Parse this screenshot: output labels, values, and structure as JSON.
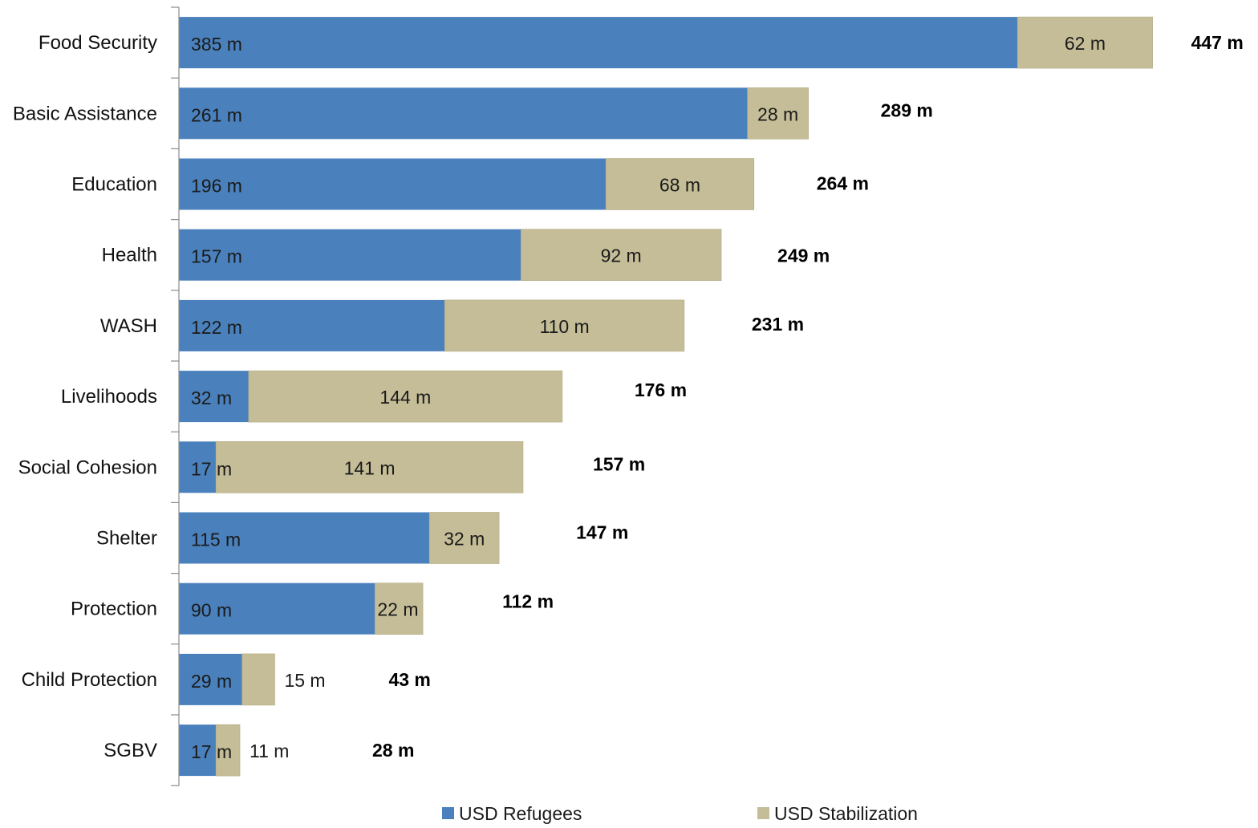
{
  "chart_data": {
    "type": "bar",
    "orientation": "horizontal",
    "stacked": true,
    "categories": [
      "Food Security",
      "Basic Assistance",
      "Education",
      "Health",
      "WASH",
      "Livelihoods",
      "Social Cohesion",
      "Shelter",
      "Protection",
      "Child Protection",
      "SGBV"
    ],
    "series": [
      {
        "name": "USD Refugees",
        "color": "#4a81bd",
        "values": [
          385,
          261,
          196,
          157,
          122,
          32,
          17,
          115,
          90,
          29,
          17
        ],
        "labels": [
          "385 m",
          "261 m",
          "196 m",
          "157 m",
          "122 m",
          "32 m",
          "17 m",
          "115 m",
          "90 m",
          "29 m",
          "17 m"
        ]
      },
      {
        "name": "USD Stabilization",
        "color": "#c4bd97",
        "values": [
          62,
          28,
          68,
          92,
          110,
          144,
          141,
          32,
          22,
          15,
          11
        ],
        "labels": [
          "62 m",
          "28 m",
          "68 m",
          "92 m",
          "110 m",
          "144 m",
          "141 m",
          "32 m",
          "22 m",
          "15 m",
          "11 m"
        ]
      }
    ],
    "totals": [
      447,
      289,
      264,
      249,
      231,
      176,
      157,
      147,
      112,
      43,
      28
    ],
    "total_labels": [
      "447 m",
      "289 m",
      "264 m",
      "249 m",
      "231 m",
      "176 m",
      "157 m",
      "147 m",
      "112 m",
      "43 m",
      "28 m"
    ],
    "xlim": [
      0,
      447
    ],
    "grid": false,
    "legend_position": "bottom"
  }
}
